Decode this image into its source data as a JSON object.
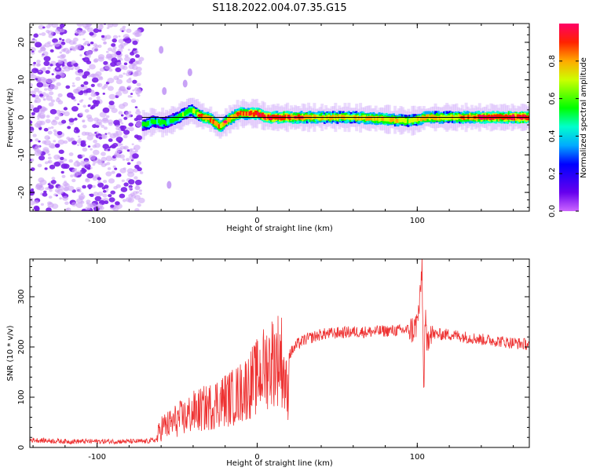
{
  "title": "S118.2022.004.07.35.G15",
  "chart_data": [
    {
      "type": "heatmap",
      "xlabel": "Height of straight line (km)",
      "ylabel": "Frequency (Hz)",
      "xlim": [
        -142,
        170
      ],
      "ylim": [
        -25,
        25
      ],
      "xticks": [
        -100,
        0,
        100
      ],
      "yticks": [
        -20,
        -10,
        0,
        10,
        20
      ],
      "colorbar": {
        "label": "Normalized spectral amplitude",
        "range": [
          0,
          1
        ],
        "ticks": [
          0.0,
          0.2,
          0.4,
          0.6,
          0.8
        ]
      },
      "noise_region_x": [
        -142,
        -72
      ],
      "ridge": [
        {
          "x": -72,
          "f": -2,
          "level": 0.35
        },
        {
          "x": -65,
          "f": -1,
          "level": 0.4
        },
        {
          "x": -58,
          "f": -1.5,
          "level": 0.4
        },
        {
          "x": -50,
          "f": 0,
          "level": 0.45
        },
        {
          "x": -42,
          "f": 2,
          "level": 0.5
        },
        {
          "x": -36,
          "f": 0.5,
          "level": 0.7
        },
        {
          "x": -30,
          "f": -0.5,
          "level": 0.75
        },
        {
          "x": -24,
          "f": -2.5,
          "level": 0.7
        },
        {
          "x": -18,
          "f": -0.5,
          "level": 0.7
        },
        {
          "x": -12,
          "f": 1,
          "level": 0.75
        },
        {
          "x": -5,
          "f": 1,
          "level": 0.8
        },
        {
          "x": 0,
          "f": 1,
          "level": 0.8
        },
        {
          "x": 5,
          "f": 0,
          "level": 0.85
        },
        {
          "x": 20,
          "f": 0,
          "level": 0.8
        },
        {
          "x": 40,
          "f": 0,
          "level": 0.6
        },
        {
          "x": 60,
          "f": 0,
          "level": 0.65
        },
        {
          "x": 80,
          "f": -0.5,
          "level": 0.7
        },
        {
          "x": 95,
          "f": -1,
          "level": 0.55
        },
        {
          "x": 105,
          "f": 0,
          "level": 0.7
        },
        {
          "x": 120,
          "f": 0,
          "level": 0.6
        },
        {
          "x": 140,
          "f": 0,
          "level": 0.85
        },
        {
          "x": 170,
          "f": 0,
          "level": 0.85
        }
      ],
      "reference_line_f": 0
    },
    {
      "type": "line",
      "xlabel": "Height of straight line (km)",
      "ylabel": "SNR (10 * v/v)",
      "xlim": [
        -142,
        170
      ],
      "ylim": [
        0,
        375
      ],
      "xticks": [
        -100,
        0,
        100
      ],
      "yticks": [
        0,
        100,
        200,
        300
      ],
      "series": [
        {
          "color": "#ee3333",
          "x": [
            -142,
            -120,
            -100,
            -80,
            -70,
            -63,
            -60,
            -55,
            -50,
            -45,
            -40,
            -35,
            -30,
            -25,
            -20,
            -15,
            -10,
            -5,
            0,
            5,
            10,
            15,
            19,
            20,
            25,
            30,
            40,
            50,
            60,
            70,
            80,
            90,
            98,
            100,
            102,
            103,
            104,
            105,
            106,
            108,
            110,
            120,
            130,
            140,
            150,
            160,
            170
          ],
          "y": [
            15,
            12,
            12,
            12,
            12,
            15,
            40,
            45,
            55,
            60,
            70,
            75,
            80,
            90,
            95,
            100,
            110,
            125,
            140,
            160,
            175,
            180,
            100,
            185,
            205,
            215,
            225,
            228,
            230,
            230,
            232,
            233,
            235,
            250,
            300,
            370,
            110,
            260,
            200,
            240,
            225,
            225,
            220,
            215,
            212,
            208,
            205
          ]
        }
      ]
    }
  ]
}
